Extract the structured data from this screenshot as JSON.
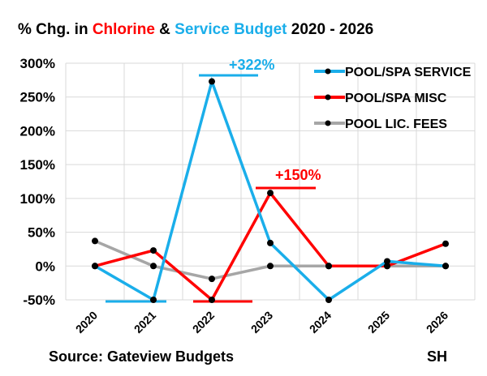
{
  "chart_data": {
    "type": "line",
    "title_parts": [
      {
        "text": "% Chg. in ",
        "color": "#000000"
      },
      {
        "text": "Chlorine",
        "color": "#ff0000"
      },
      {
        "text": " & ",
        "color": "#000000"
      },
      {
        "text": "Service Budget",
        "color": "#1aaeea"
      },
      {
        "text": " 2020 - 2026",
        "color": "#000000"
      }
    ],
    "categories": [
      "2020",
      "2021",
      "2022",
      "2023",
      "2024",
      "2025",
      "2026"
    ],
    "ylim": [
      -50,
      300
    ],
    "yticks": [
      -50,
      0,
      50,
      100,
      150,
      200,
      250,
      300
    ],
    "ytick_labels": [
      "-50%",
      "0%",
      "50%",
      "100%",
      "150%",
      "200%",
      "250%",
      "300%"
    ],
    "grid": true,
    "legend_position": "top-right",
    "series": [
      {
        "name": "POOL/SPA SERVICE",
        "color": "#1aaeea",
        "values": [
          0,
          -50,
          273,
          34,
          -50,
          7,
          0
        ]
      },
      {
        "name": "POOL/SPA MISC",
        "color": "#ff0000",
        "values": [
          0,
          23,
          -50,
          108,
          0,
          0,
          33
        ]
      },
      {
        "name": "POOL LIC. FEES",
        "color": "#a6a6a6",
        "values": [
          37,
          0,
          -19,
          0,
          0,
          0,
          0
        ]
      }
    ],
    "annotations": [
      {
        "text": "+322%",
        "color": "#1aaeea"
      },
      {
        "text": "+150%",
        "color": "#ff0000"
      }
    ],
    "source": "Source: Gateview Budgets",
    "initials": "SH"
  }
}
